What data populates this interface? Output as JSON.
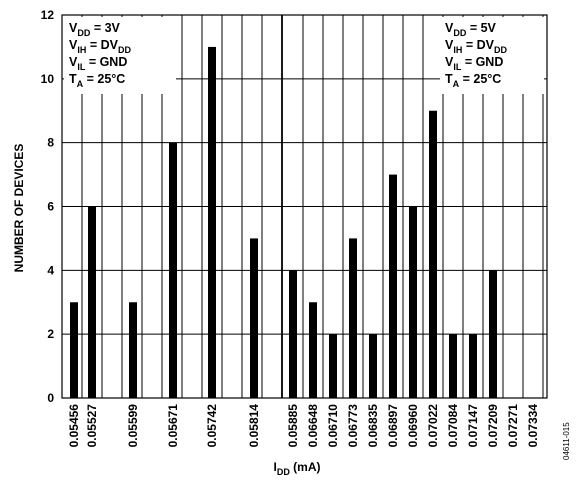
{
  "chart_data": {
    "type": "bar",
    "xlabel_main": "I",
    "xlabel_sub": "DD",
    "xlabel_rest": " (mA)",
    "ylabel": "NUMBER OF DEVICES",
    "ylim": [
      0,
      12
    ],
    "yticks": [
      "0",
      "2",
      "4",
      "6",
      "8",
      "10",
      "12"
    ],
    "categories": [
      "0.05456",
      "0.05527",
      "0.05599",
      "0.05671",
      "0.05742",
      "0.05814",
      "0.05885",
      "0.06648",
      "0.06710",
      "0.06773",
      "0.06835",
      "0.06897",
      "0.06960",
      "0.07022",
      "0.07084",
      "0.07147",
      "0.07209",
      "0.07271",
      "0.07334"
    ],
    "left_panel": {
      "category_indices": [
        0,
        1,
        2,
        3,
        4,
        5
      ],
      "values": [
        3,
        6,
        3,
        8,
        11,
        5
      ]
    },
    "right_panel": {
      "category_indices": [
        6,
        7,
        8,
        9,
        10,
        11,
        12,
        13,
        14,
        15,
        16,
        17,
        18
      ],
      "values": [
        4,
        3,
        2,
        5,
        2,
        7,
        6,
        9,
        2,
        2,
        4,
        0,
        0
      ]
    },
    "legend_left": [
      {
        "main": "V",
        "sub": "DD",
        "rest": " = 3V"
      },
      {
        "main": "V",
        "sub": "IH",
        "rest": " = DV",
        "sub2": "DD"
      },
      {
        "main": "V",
        "sub": "IL",
        "rest": " = GND"
      },
      {
        "main": "T",
        "sub": "A",
        "rest": " = 25°C"
      }
    ],
    "legend_right": [
      {
        "main": "V",
        "sub": "DD",
        "rest": " = 5V"
      },
      {
        "main": "V",
        "sub": "IH",
        "rest": " = DV",
        "sub2": "DD"
      },
      {
        "main": "V",
        "sub": "IL",
        "rest": " = GND"
      },
      {
        "main": "T",
        "sub": "A",
        "rest": " = 25°C"
      }
    ],
    "grid": true,
    "legend_position": "top-left and top-right boxes",
    "bar_color": "#000000",
    "figure_id": "04611-015"
  }
}
